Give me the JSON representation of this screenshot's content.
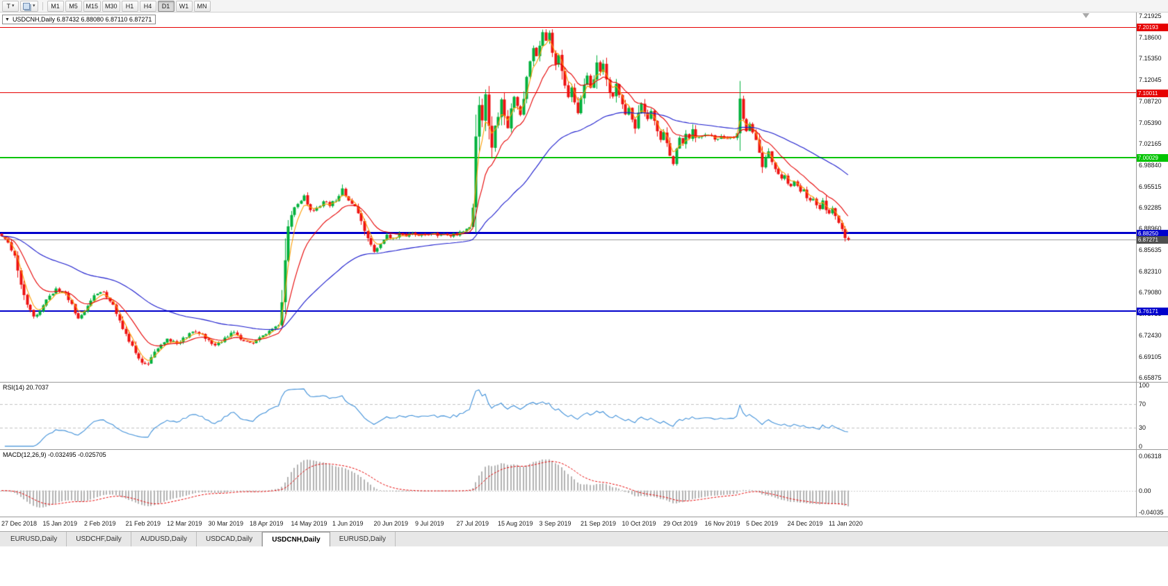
{
  "icons": {
    "collapse": "▼",
    "dropdown": "▾"
  },
  "toolbar": {
    "templates_label": "T",
    "timeframes": [
      "M1",
      "M5",
      "M15",
      "M30",
      "H1",
      "H4",
      "D1",
      "W1",
      "MN"
    ],
    "active_timeframe": "D1"
  },
  "chart": {
    "symbol": "USDCNH",
    "period": "Daily",
    "title": "USDCNH,Daily 6.87432 6.88080 6.87110 6.87271",
    "open": "6.87432",
    "high": "6.88080",
    "low": "6.87110",
    "close": "6.87271"
  },
  "chart_data": {
    "type": "candlestick",
    "title": "USDCNH,Daily",
    "up_color": "#00b13c",
    "down_color": "#ee1111",
    "y_range": {
      "top": 7.225,
      "bottom": 6.652
    },
    "y_axis_ticks": [
      "7.21925",
      "7.18600",
      "7.15350",
      "7.12045",
      "7.08720",
      "7.05390",
      "7.02165",
      "6.98840",
      "6.95515",
      "6.92285",
      "6.88960",
      "6.85635",
      "6.82310",
      "6.79080",
      "6.75755",
      "6.72430",
      "6.69105",
      "6.65875"
    ],
    "x_axis_labels": [
      {
        "label": "27 Dec 2018",
        "index": 0
      },
      {
        "label": "15 Jan 2019",
        "index": 13
      },
      {
        "label": "2 Feb 2019",
        "index": 26
      },
      {
        "label": "21 Feb 2019",
        "index": 39
      },
      {
        "label": "12 Mar 2019",
        "index": 52
      },
      {
        "label": "30 Mar 2019",
        "index": 65
      },
      {
        "label": "18 Apr 2019",
        "index": 78
      },
      {
        "label": "14 May 2019",
        "index": 91
      },
      {
        "label": "1 Jun 2019",
        "index": 104
      },
      {
        "label": "20 Jun 2019",
        "index": 117
      },
      {
        "label": "9 Jul 2019",
        "index": 130
      },
      {
        "label": "27 Jul 2019",
        "index": 143
      },
      {
        "label": "15 Aug 2019",
        "index": 156
      },
      {
        "label": "3 Sep 2019",
        "index": 169
      },
      {
        "label": "21 Sep 2019",
        "index": 182
      },
      {
        "label": "10 Oct 2019",
        "index": 195
      },
      {
        "label": "29 Oct 2019",
        "index": 208
      },
      {
        "label": "16 Nov 2019",
        "index": 221
      },
      {
        "label": "5 Dec 2019",
        "index": 234
      },
      {
        "label": "24 Dec 2019",
        "index": 247
      },
      {
        "label": "11 Jan 2020",
        "index": 260
      }
    ],
    "total_slots": 357,
    "candles_count": 267,
    "horizontal_lines": [
      {
        "price": 7.20193,
        "label": "7.20193",
        "color": "#e60000",
        "width": 1
      },
      {
        "price": 7.10011,
        "label": "7.10011",
        "color": "#e60000",
        "width": 1
      },
      {
        "price": 7.00029,
        "label": "7.00029",
        "color": "#00c400",
        "width": 2
      },
      {
        "price": 6.8825,
        "label": "6.88250",
        "color": "#0000cc",
        "width": 3
      },
      {
        "price": 6.76171,
        "label": "6.76171",
        "color": "#0000cc",
        "width": 2
      }
    ],
    "current_price": {
      "value": 6.87271,
      "label": "6.87271",
      "bg": "#4f4f4f",
      "line_color": "#9f9f9f"
    },
    "moving_averages": [
      {
        "period": 4,
        "color": "#ff9c00"
      },
      {
        "period": 13,
        "color": "#e60000"
      },
      {
        "period": 55,
        "color": "#1818cc"
      }
    ],
    "price_anchors": [
      [
        0,
        6.878
      ],
      [
        2,
        6.868
      ],
      [
        4,
        6.846
      ],
      [
        6,
        6.801
      ],
      [
        8,
        6.77
      ],
      [
        10,
        6.752
      ],
      [
        12,
        6.763
      ],
      [
        14,
        6.781
      ],
      [
        17,
        6.796
      ],
      [
        20,
        6.789
      ],
      [
        22,
        6.772
      ],
      [
        24,
        6.748
      ],
      [
        26,
        6.762
      ],
      [
        29,
        6.786
      ],
      [
        32,
        6.791
      ],
      [
        35,
        6.771
      ],
      [
        38,
        6.736
      ],
      [
        41,
        6.706
      ],
      [
        44,
        6.683
      ],
      [
        46,
        6.68
      ],
      [
        49,
        6.706
      ],
      [
        52,
        6.719
      ],
      [
        55,
        6.711
      ],
      [
        58,
        6.723
      ],
      [
        61,
        6.731
      ],
      [
        64,
        6.721
      ],
      [
        67,
        6.707
      ],
      [
        70,
        6.719
      ],
      [
        73,
        6.729
      ],
      [
        76,
        6.715
      ],
      [
        79,
        6.713
      ],
      [
        82,
        6.723
      ],
      [
        85,
        6.733
      ],
      [
        87,
        6.741
      ],
      [
        88,
        6.776
      ],
      [
        89,
        6.842
      ],
      [
        90,
        6.892
      ],
      [
        91,
        6.913
      ],
      [
        93,
        6.929
      ],
      [
        95,
        6.94
      ],
      [
        97,
        6.916
      ],
      [
        99,
        6.923
      ],
      [
        101,
        6.931
      ],
      [
        103,
        6.927
      ],
      [
        105,
        6.935
      ],
      [
        107,
        6.95
      ],
      [
        109,
        6.933
      ],
      [
        111,
        6.925
      ],
      [
        113,
        6.901
      ],
      [
        115,
        6.873
      ],
      [
        117,
        6.853
      ],
      [
        119,
        6.867
      ],
      [
        121,
        6.881
      ],
      [
        123,
        6.873
      ],
      [
        125,
        6.883
      ],
      [
        127,
        6.878
      ],
      [
        129,
        6.882
      ],
      [
        131,
        6.877
      ],
      [
        133,
        6.881
      ],
      [
        135,
        6.883
      ],
      [
        137,
        6.878
      ],
      [
        139,
        6.882
      ],
      [
        141,
        6.88
      ],
      [
        143,
        6.882
      ],
      [
        145,
        6.885
      ],
      [
        147,
        6.891
      ],
      [
        148,
        6.922
      ],
      [
        149,
        7.032
      ],
      [
        150,
        7.082
      ],
      [
        151,
        7.059
      ],
      [
        152,
        7.096
      ],
      [
        153,
        7.051
      ],
      [
        154,
        7.013
      ],
      [
        155,
        7.049
      ],
      [
        156,
        7.063
      ],
      [
        157,
        7.089
      ],
      [
        158,
        7.063
      ],
      [
        159,
        7.045
      ],
      [
        160,
        7.077
      ],
      [
        161,
        7.093
      ],
      [
        162,
        7.079
      ],
      [
        163,
        7.065
      ],
      [
        164,
        7.093
      ],
      [
        165,
        7.125
      ],
      [
        166,
        7.149
      ],
      [
        167,
        7.171
      ],
      [
        168,
        7.156
      ],
      [
        169,
        7.176
      ],
      [
        170,
        7.193
      ],
      [
        171,
        7.181
      ],
      [
        172,
        7.195
      ],
      [
        173,
        7.161
      ],
      [
        174,
        7.146
      ],
      [
        175,
        7.157
      ],
      [
        176,
        7.133
      ],
      [
        177,
        7.111
      ],
      [
        178,
        7.093
      ],
      [
        179,
        7.107
      ],
      [
        180,
        7.087
      ],
      [
        181,
        7.067
      ],
      [
        182,
        7.093
      ],
      [
        183,
        7.115
      ],
      [
        184,
        7.125
      ],
      [
        185,
        7.109
      ],
      [
        186,
        7.123
      ],
      [
        187,
        7.149
      ],
      [
        188,
        7.133
      ],
      [
        189,
        7.147
      ],
      [
        190,
        7.121
      ],
      [
        191,
        7.101
      ],
      [
        192,
        7.097
      ],
      [
        193,
        7.113
      ],
      [
        194,
        7.097
      ],
      [
        195,
        7.081
      ],
      [
        196,
        7.067
      ],
      [
        197,
        7.079
      ],
      [
        198,
        7.061
      ],
      [
        199,
        7.043
      ],
      [
        200,
        7.069
      ],
      [
        201,
        7.083
      ],
      [
        202,
        7.071
      ],
      [
        203,
        7.061
      ],
      [
        204,
        7.073
      ],
      [
        205,
        7.057
      ],
      [
        206,
        7.041
      ],
      [
        207,
        7.027
      ],
      [
        208,
        7.037
      ],
      [
        209,
        7.021
      ],
      [
        210,
        7.001
      ],
      [
        211,
        6.991
      ],
      [
        212,
        7.013
      ],
      [
        213,
        7.033
      ],
      [
        214,
        7.023
      ],
      [
        215,
        7.037
      ],
      [
        216,
        7.027
      ],
      [
        217,
        7.043
      ],
      [
        218,
        7.033
      ],
      [
        220,
        7.033
      ],
      [
        222,
        7.037
      ],
      [
        224,
        7.027
      ],
      [
        226,
        7.033
      ],
      [
        228,
        7.029
      ],
      [
        230,
        7.031
      ],
      [
        231,
        7.037
      ],
      [
        232,
        7.089
      ],
      [
        233,
        7.061
      ],
      [
        234,
        7.043
      ],
      [
        235,
        7.051
      ],
      [
        236,
        7.041
      ],
      [
        237,
        7.029
      ],
      [
        238,
        7.009
      ],
      [
        239,
        6.987
      ],
      [
        240,
        7.001
      ],
      [
        241,
        7.011
      ],
      [
        242,
        6.995
      ],
      [
        243,
        6.981
      ],
      [
        244,
        6.975
      ],
      [
        245,
        6.965
      ],
      [
        246,
        6.971
      ],
      [
        247,
        6.959
      ],
      [
        248,
        6.955
      ],
      [
        249,
        6.965
      ],
      [
        250,
        6.955
      ],
      [
        251,
        6.945
      ],
      [
        252,
        6.951
      ],
      [
        253,
        6.939
      ],
      [
        254,
        6.931
      ],
      [
        255,
        6.937
      ],
      [
        256,
        6.925
      ],
      [
        257,
        6.921
      ],
      [
        258,
        6.931
      ],
      [
        259,
        6.92
      ],
      [
        260,
        6.915
      ],
      [
        261,
        6.921
      ],
      [
        262,
        6.909
      ],
      [
        263,
        6.899
      ],
      [
        264,
        6.888
      ],
      [
        265,
        6.8745
      ],
      [
        266,
        6.8727
      ]
    ],
    "rsi": {
      "label": "RSI(14) 20.7037",
      "period": 14,
      "value": 20.7037,
      "axis_ticks": [
        "100",
        "70",
        "30",
        "0"
      ],
      "levels": [
        70,
        30
      ],
      "color": "#3e8fd8",
      "display_range": [
        -5,
        105
      ]
    },
    "macd": {
      "label": "MACD(12,26,9) -0.032495 -0.025705",
      "fast": 12,
      "slow": 26,
      "signal": 9,
      "values": [
        "-0.032495",
        "-0.025705"
      ],
      "axis_ticks": [
        "0.06318",
        "0.00",
        "-0.04035"
      ],
      "axis_values": [
        0.06318,
        0,
        -0.04035
      ],
      "range": [
        0.075,
        -0.048
      ],
      "hist_color": "#b3b3b3",
      "signal_color": "#e60000",
      "zero_color": "#cccccc"
    }
  },
  "tabs": [
    {
      "label": "EURUSD,Daily",
      "active": false
    },
    {
      "label": "USDCHF,Daily",
      "active": false
    },
    {
      "label": "AUDUSD,Daily",
      "active": false
    },
    {
      "label": "USDCAD,Daily",
      "active": false
    },
    {
      "label": "USDCNH,Daily",
      "active": true
    },
    {
      "label": "EURUSD,Daily",
      "active": false
    }
  ]
}
